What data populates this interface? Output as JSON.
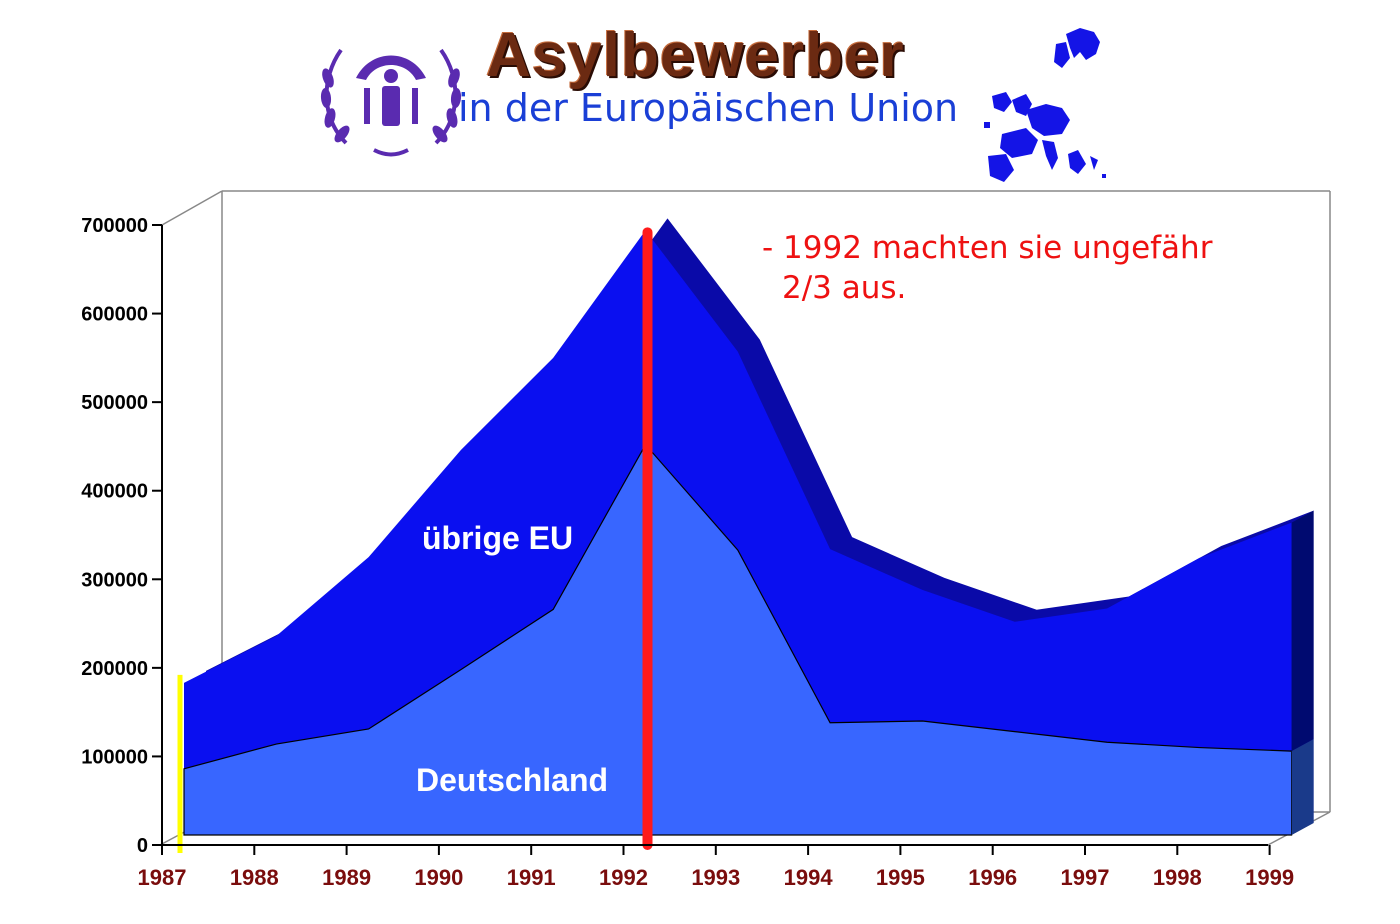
{
  "header": {
    "title": "Asylbewerber",
    "subtitle": "in der Europäischen Union"
  },
  "annotation": {
    "line1": "- 1992 machten sie ungefähr",
    "line2": "2/3 aus."
  },
  "colors": {
    "total_area": "#0a0ff0",
    "total_side": "#0a0aa8",
    "germany_area": "#3866ff",
    "marker_1992": "#ff1a1a",
    "marker_1987": "#ffff00",
    "floor": "#888888",
    "tick_x": "#7a0d0d",
    "annotation": "#ee1111"
  },
  "chart_data": {
    "type": "area",
    "x": [
      "1987",
      "1988",
      "1989",
      "1990",
      "1991",
      "1992",
      "1993",
      "1994",
      "1995",
      "1996",
      "1997",
      "1998",
      "1999"
    ],
    "series": [
      {
        "name": "Deutschland",
        "values": [
          86000,
          114000,
          131000,
          198000,
          266000,
          452000,
          333000,
          138000,
          140000,
          128000,
          116000,
          110000,
          106000
        ]
      },
      {
        "name": "übrige EU",
        "values": [
          97000,
          122000,
          194000,
          248000,
          284000,
          242000,
          224000,
          196000,
          148000,
          124000,
          151000,
          214000,
          258000
        ]
      }
    ],
    "yticks": [
      0,
      100000,
      200000,
      300000,
      400000,
      500000,
      600000,
      700000
    ],
    "ylim": [
      0,
      700000
    ],
    "stacked": true,
    "highlight_year": "1992",
    "grid": false,
    "legend": "inline labels"
  }
}
